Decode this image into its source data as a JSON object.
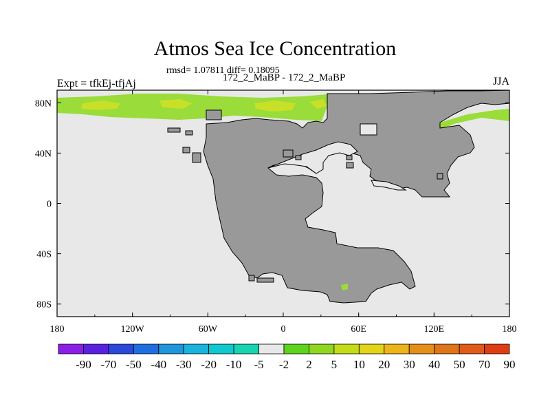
{
  "title": "Atmos Sea Ice Concentration",
  "stats": "rmsd= 1.07811 diff= 0.18095",
  "subtitle": "172_2_MaBP - 172_2_MaBP",
  "left_string": "Expt = tfkEj-tfjAj",
  "right_string": "JJA",
  "x_ticks": [
    "180",
    "120W",
    "60W",
    "0",
    "60E",
    "120E",
    "180"
  ],
  "y_ticks": [
    "80N",
    "40N",
    "0",
    "40S",
    "80S"
  ],
  "colors": {
    "ocean": "#e8e8e8",
    "land": "#999999",
    "coast": "#000000",
    "ice_light": "#9adc3a",
    "ice_strong": "#c8e028",
    "ice_cyan": "#20c8b8"
  },
  "colorbar": {
    "labels": [
      "-90",
      "-70",
      "-50",
      "-40",
      "-30",
      "-20",
      "-10",
      "-5",
      "-2",
      "2",
      "5",
      "10",
      "20",
      "30",
      "40",
      "50",
      "70",
      "90"
    ],
    "colors": [
      "#8a1ee8",
      "#5a20e0",
      "#2a48dc",
      "#1e6ee0",
      "#1e96dc",
      "#18b4dc",
      "#10c8d0",
      "#18d4b0",
      "#e8e8e8",
      "#5cd41e",
      "#90d820",
      "#c4dc18",
      "#e4d418",
      "#ecb418",
      "#e49018",
      "#e07418",
      "#e05a18",
      "#e03c14"
    ]
  }
}
